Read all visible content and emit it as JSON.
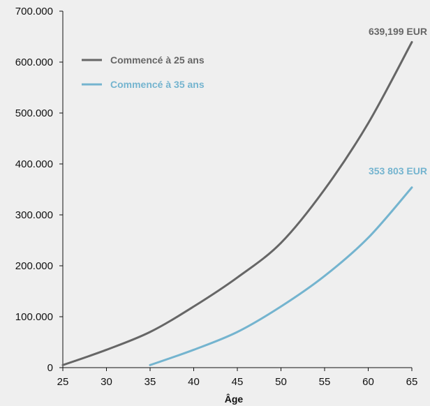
{
  "chart_data": {
    "type": "line",
    "xlabel": "Âge",
    "ylabel": "",
    "xlim": [
      25,
      65
    ],
    "ylim": [
      0,
      700000
    ],
    "xticks": [
      25,
      30,
      35,
      40,
      45,
      50,
      55,
      60,
      65
    ],
    "xtick_labels": [
      "25",
      "30",
      "35",
      "40",
      "45",
      "50",
      "55",
      "60",
      "65"
    ],
    "yticks": [
      0,
      100000,
      200000,
      300000,
      400000,
      500000,
      600000,
      700000
    ],
    "ytick_labels": [
      "0",
      "100.000",
      "200.000",
      "300.000",
      "400.000",
      "500.000",
      "600.000",
      "700.000"
    ],
    "grid": false,
    "legend_position": "top-left",
    "series": [
      {
        "name": "Commencé à 25 ans",
        "color": "#666666",
        "x": [
          25,
          30,
          35,
          40,
          45,
          50,
          55,
          60,
          65
        ],
        "y": [
          5000,
          35000,
          70000,
          120000,
          177000,
          245000,
          350000,
          480000,
          639199
        ],
        "end_label": "639,199 EUR"
      },
      {
        "name": "Commencé à 35 ans",
        "color": "#74b4cf",
        "x": [
          35,
          40,
          45,
          50,
          55,
          60,
          65
        ],
        "y": [
          5000,
          35000,
          70000,
          120000,
          180000,
          255000,
          353803
        ],
        "end_label": "353 803 EUR"
      }
    ]
  }
}
